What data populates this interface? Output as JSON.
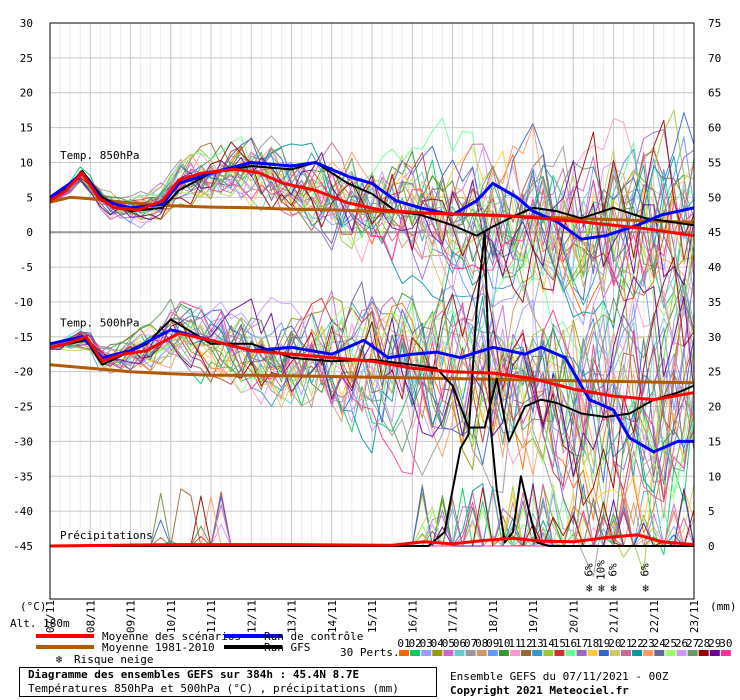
{
  "chart_data": {
    "type": "line",
    "left_axis": {
      "label": "(°C)",
      "min": -45,
      "max": 30,
      "ticks": [
        30,
        25,
        20,
        15,
        10,
        5,
        0,
        -5,
        -10,
        -15,
        -20,
        -25,
        -30,
        -35,
        -40,
        -45
      ]
    },
    "right_axis": {
      "label": "(mm)",
      "min": 0,
      "max": 75,
      "ticks": [
        75,
        70,
        65,
        60,
        55,
        50,
        45,
        40,
        35,
        30,
        25,
        20,
        15,
        10,
        5,
        0
      ]
    },
    "x_ticks": [
      "07/11",
      "08/11",
      "09/11",
      "10/11",
      "11/11",
      "12/11",
      "13/11",
      "14/11",
      "15/11",
      "16/11",
      "17/11",
      "18/11",
      "19/11",
      "20/11",
      "21/11",
      "22/11",
      "23/11"
    ],
    "x_range_days": [
      0,
      16
    ],
    "altitude_label": "Alt. 180m",
    "section_labels": [
      "Temp. 850hPa",
      "Temp. 500hPa",
      "Précipitations"
    ],
    "snow_risk": [
      {
        "day": 13.4,
        "label": "6%"
      },
      {
        "day": 13.7,
        "label": "10%"
      },
      {
        "day": 14.0,
        "label": "6%"
      },
      {
        "day": 14.8,
        "label": "6%"
      }
    ],
    "series": [
      {
        "name": "Moyenne des scénarios",
        "color": "#ff0000",
        "width": 3,
        "t850": [
          [
            0,
            4.5
          ],
          [
            0.4,
            6
          ],
          [
            0.8,
            8.5
          ],
          [
            1.2,
            5
          ],
          [
            1.6,
            3.5
          ],
          [
            2.2,
            3.2
          ],
          [
            2.8,
            4.5
          ],
          [
            3.2,
            7.5
          ],
          [
            3.8,
            8.5
          ],
          [
            4.6,
            9
          ],
          [
            5.2,
            8.5
          ],
          [
            5.8,
            7
          ],
          [
            6.6,
            6
          ],
          [
            7.4,
            4.2
          ],
          [
            8.2,
            3.2
          ],
          [
            9.2,
            2.8
          ],
          [
            10.2,
            2.6
          ],
          [
            11.2,
            2.4
          ],
          [
            12.2,
            2
          ],
          [
            13.2,
            1.5
          ],
          [
            14,
            1
          ],
          [
            14.8,
            0.5
          ],
          [
            15.4,
            0
          ],
          [
            16,
            -0.5
          ]
        ],
        "t500": [
          [
            0,
            -16.5
          ],
          [
            0.4,
            -16
          ],
          [
            0.9,
            -15
          ],
          [
            1.3,
            -18.5
          ],
          [
            1.8,
            -17.5
          ],
          [
            2.4,
            -17
          ],
          [
            3.2,
            -14.5
          ],
          [
            4,
            -15.5
          ],
          [
            5,
            -17
          ],
          [
            6,
            -17.5
          ],
          [
            7,
            -18
          ],
          [
            8,
            -18.5
          ],
          [
            9,
            -19.5
          ],
          [
            10,
            -20
          ],
          [
            11,
            -20.2
          ],
          [
            12,
            -21
          ],
          [
            13,
            -22.5
          ],
          [
            14,
            -23.5
          ],
          [
            15,
            -24
          ],
          [
            16,
            -23
          ]
        ],
        "precip": [
          [
            0,
            0
          ],
          [
            3,
            0.2
          ],
          [
            6,
            0.2
          ],
          [
            8.5,
            0.1
          ],
          [
            9.3,
            0.6
          ],
          [
            10,
            0.3
          ],
          [
            10.8,
            0.8
          ],
          [
            11.5,
            1.1
          ],
          [
            12.2,
            0.7
          ],
          [
            13,
            0.6
          ],
          [
            13.8,
            1.2
          ],
          [
            14.6,
            1.6
          ],
          [
            15.2,
            0.6
          ],
          [
            16,
            0.2
          ]
        ]
      },
      {
        "name": "Moyenne 1981-2010",
        "color": "#b35900",
        "width": 3,
        "t850": [
          [
            0,
            4.3
          ],
          [
            0.5,
            5
          ],
          [
            1,
            4.8
          ],
          [
            2,
            4.2
          ],
          [
            3,
            3.8
          ],
          [
            4,
            3.6
          ],
          [
            5,
            3.5
          ],
          [
            6,
            3.3
          ],
          [
            7,
            3.2
          ],
          [
            8,
            3
          ],
          [
            9,
            2.8
          ],
          [
            10,
            2.6
          ],
          [
            11,
            2.4
          ],
          [
            12,
            2.2
          ],
          [
            13,
            2
          ],
          [
            14,
            1.8
          ],
          [
            15,
            1.6
          ],
          [
            16,
            1.4
          ]
        ],
        "t500": [
          [
            0,
            -19
          ],
          [
            1,
            -19.5
          ],
          [
            2,
            -20
          ],
          [
            3,
            -20.3
          ],
          [
            4,
            -20.5
          ],
          [
            5,
            -20.5
          ],
          [
            6,
            -20.6
          ],
          [
            7,
            -20.7
          ],
          [
            8,
            -20.8
          ],
          [
            9,
            -20.9
          ],
          [
            10,
            -21
          ],
          [
            11,
            -21.1
          ],
          [
            12,
            -21.2
          ],
          [
            13,
            -21.3
          ],
          [
            14,
            -21.4
          ],
          [
            15,
            -21.5
          ],
          [
            16,
            -21.6
          ]
        ]
      },
      {
        "name": "Run de contrôle",
        "color": "#0000ff",
        "width": 3,
        "t850": [
          [
            0,
            5
          ],
          [
            0.5,
            7
          ],
          [
            0.8,
            8.5
          ],
          [
            1.3,
            4.5
          ],
          [
            2,
            3.5
          ],
          [
            2.8,
            4
          ],
          [
            3.2,
            7
          ],
          [
            4,
            8.5
          ],
          [
            5,
            10
          ],
          [
            6,
            9.5
          ],
          [
            6.6,
            10
          ],
          [
            7.4,
            8
          ],
          [
            8,
            7
          ],
          [
            8.6,
            4.5
          ],
          [
            9.2,
            3.5
          ],
          [
            10,
            2.5
          ],
          [
            10.6,
            4.5
          ],
          [
            11,
            7
          ],
          [
            11.6,
            5
          ],
          [
            12,
            3
          ],
          [
            12.6,
            1.5
          ],
          [
            13.2,
            -1
          ],
          [
            13.8,
            -0.5
          ],
          [
            14.6,
            1
          ],
          [
            15.2,
            2.5
          ],
          [
            16,
            3.5
          ]
        ],
        "t500": [
          [
            0,
            -16
          ],
          [
            0.8,
            -15
          ],
          [
            1.3,
            -18
          ],
          [
            2,
            -17
          ],
          [
            3,
            -14
          ],
          [
            4,
            -15.5
          ],
          [
            5,
            -17
          ],
          [
            6,
            -16.5
          ],
          [
            7,
            -17.5
          ],
          [
            7.8,
            -15.5
          ],
          [
            8.4,
            -18
          ],
          [
            9,
            -17.5
          ],
          [
            9.6,
            -17.2
          ],
          [
            10.2,
            -18
          ],
          [
            11,
            -16.5
          ],
          [
            11.8,
            -17.5
          ],
          [
            12.2,
            -16.5
          ],
          [
            12.8,
            -18
          ],
          [
            13.4,
            -24
          ],
          [
            14,
            -25.5
          ],
          [
            14.4,
            -29.5
          ],
          [
            15,
            -31.5
          ],
          [
            15.6,
            -30
          ],
          [
            16,
            -30
          ]
        ]
      },
      {
        "name": "Run GFS",
        "color": "#000000",
        "width": 2,
        "t850": [
          [
            0,
            4.8
          ],
          [
            0.5,
            6.5
          ],
          [
            0.8,
            8.8
          ],
          [
            1.3,
            5
          ],
          [
            2,
            3
          ],
          [
            2.8,
            3.5
          ],
          [
            3.2,
            6
          ],
          [
            4,
            8.5
          ],
          [
            5,
            9.5
          ],
          [
            6,
            9
          ],
          [
            6.6,
            10
          ],
          [
            7.4,
            7
          ],
          [
            8,
            5.5
          ],
          [
            8.6,
            3
          ],
          [
            9.2,
            2.5
          ],
          [
            10,
            1
          ],
          [
            10.6,
            -0.5
          ],
          [
            11,
            0.8
          ],
          [
            11.6,
            2.5
          ],
          [
            12,
            3.5
          ],
          [
            12.6,
            3
          ],
          [
            13.2,
            2
          ],
          [
            14,
            3.5
          ],
          [
            14.8,
            2
          ],
          [
            15.4,
            1.5
          ],
          [
            16,
            1
          ]
        ],
        "t500": [
          [
            0,
            -16.5
          ],
          [
            0.9,
            -15.5
          ],
          [
            1.3,
            -19
          ],
          [
            2.4,
            -16
          ],
          [
            3,
            -12.5
          ],
          [
            4,
            -16
          ],
          [
            5,
            -16
          ],
          [
            6,
            -18
          ],
          [
            7,
            -18.5
          ],
          [
            8,
            -18.3
          ],
          [
            9,
            -19
          ],
          [
            9.6,
            -19.5
          ],
          [
            10,
            -22
          ],
          [
            10.4,
            -28
          ],
          [
            10.8,
            -28
          ],
          [
            11.1,
            -21
          ],
          [
            11.4,
            -30
          ],
          [
            11.8,
            -25
          ],
          [
            12.2,
            -24
          ],
          [
            12.6,
            -24.5
          ],
          [
            13.2,
            -26
          ],
          [
            13.8,
            -26.5
          ],
          [
            14.4,
            -26
          ],
          [
            15,
            -24
          ],
          [
            15.6,
            -23
          ],
          [
            16,
            -22
          ]
        ],
        "precip": [
          [
            0,
            0
          ],
          [
            9.4,
            0
          ],
          [
            9.8,
            2
          ],
          [
            10.2,
            14
          ],
          [
            10.4,
            16
          ],
          [
            10.6,
            34
          ],
          [
            10.8,
            45
          ],
          [
            10.95,
            17
          ],
          [
            11.1,
            8
          ],
          [
            11.3,
            0.5
          ],
          [
            11.5,
            2
          ],
          [
            11.7,
            10
          ],
          [
            11.9,
            5
          ],
          [
            12.1,
            0.5
          ],
          [
            12.4,
            0
          ],
          [
            16,
            0
          ]
        ]
      }
    ],
    "perturbations": {
      "label": "30 Perts.",
      "ids": [
        "01",
        "02",
        "03",
        "04",
        "05",
        "06",
        "07",
        "08",
        "09",
        "10",
        "11",
        "12",
        "13",
        "14",
        "15",
        "16",
        "17",
        "18",
        "19",
        "20",
        "21",
        "22",
        "23",
        "24",
        "25",
        "26",
        "27",
        "28",
        "29",
        "30"
      ],
      "colors": [
        "#ff6600",
        "#00cc66",
        "#9999ff",
        "#999900",
        "#cc66cc",
        "#66cccc",
        "#999999",
        "#cc9966",
        "#6699ff",
        "#339933",
        "#ff99cc",
        "#996633",
        "#3399cc",
        "#99cc33",
        "#cc3333",
        "#66ff99",
        "#9966cc",
        "#ffcc33",
        "#3366cc",
        "#cccc66",
        "#cc6699",
        "#009999",
        "#ff9966",
        "#666699",
        "#99ff66",
        "#cc99ff",
        "#669966",
        "#990000",
        "#660099",
        "#ff3399"
      ]
    }
  },
  "legend": {
    "moyenne_scenarios": "Moyenne des scénarios",
    "moyenne_1981": "Moyenne 1981-2010",
    "risque_neige": "Risque neige",
    "run_controle": "Run de contrôle",
    "run_gfs": "Run GFS",
    "colors": {
      "red": "#ff0000",
      "brown": "#b35900",
      "blue": "#0000ff",
      "black": "#000000",
      "snow": "#3399ff"
    }
  },
  "footer": {
    "title": "Diagramme des ensembles GEFS sur 384h : 45.4N 8.7E",
    "subtitle": "Températures 850hPa et 500hPa (°C) , précipitations (mm)",
    "run": "Ensemble GEFS du 07/11/2021 - 00Z",
    "copyright": "Copyright 2021 Meteociel.fr"
  }
}
